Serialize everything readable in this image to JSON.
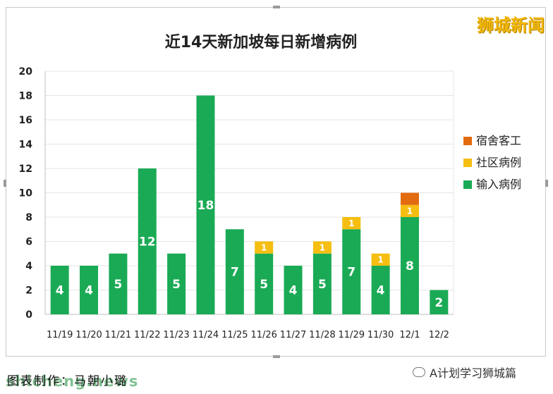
{
  "brand": "狮城新闻",
  "footer": {
    "credit": "图表制作：马朝小璐",
    "watermark": "shicheng.news",
    "account": "A计划学习狮城篇"
  },
  "colors": {
    "imported": "#1aaa55",
    "community": "#f5be11",
    "dormitory": "#e26b10",
    "grid": "#e6e6e6",
    "axis": "#bfbfbf"
  },
  "chart_data": {
    "type": "bar",
    "stacked": true,
    "title": "近14天新加坡每日新增病例",
    "xlabel": "",
    "ylabel": "",
    "categories": [
      "11/19",
      "11/20",
      "11/21",
      "11/22",
      "11/23",
      "11/24",
      "11/25",
      "11/26",
      "11/27",
      "11/28",
      "11/29",
      "11/30",
      "12/1",
      "12/2"
    ],
    "ylim": [
      0,
      20
    ],
    "yticks": [
      0,
      2,
      4,
      6,
      8,
      10,
      12,
      14,
      16,
      18,
      20
    ],
    "grid": true,
    "legend_position": "right",
    "series": [
      {
        "name": "输入病例",
        "color": "#1aaa55",
        "values": [
          4,
          4,
          5,
          12,
          5,
          18,
          7,
          5,
          4,
          5,
          7,
          4,
          8,
          2
        ],
        "labels": [
          "4",
          "4",
          "5",
          "12",
          "5",
          "18",
          "7",
          "5",
          "4",
          "5",
          "7",
          "4",
          "8",
          "2"
        ]
      },
      {
        "name": "社区病例",
        "color": "#f5be11",
        "values": [
          0,
          0,
          0,
          0,
          0,
          0,
          0,
          1,
          0,
          1,
          1,
          1,
          1,
          0
        ],
        "labels": [
          "",
          "",
          "",
          "",
          "",
          "",
          "",
          "1",
          "",
          "1",
          "1",
          "1",
          "1",
          ""
        ]
      },
      {
        "name": "宿舍客工",
        "color": "#e26b10",
        "values": [
          0,
          0,
          0,
          0,
          0,
          0,
          0,
          0,
          0,
          0,
          0,
          0,
          1,
          0
        ],
        "labels": [
          "",
          "",
          "",
          "",
          "",
          "",
          "",
          "",
          "",
          "",
          "",
          "",
          "",
          ""
        ]
      }
    ],
    "legend_order": [
      "宿舍客工",
      "社区病例",
      "输入病例"
    ]
  }
}
